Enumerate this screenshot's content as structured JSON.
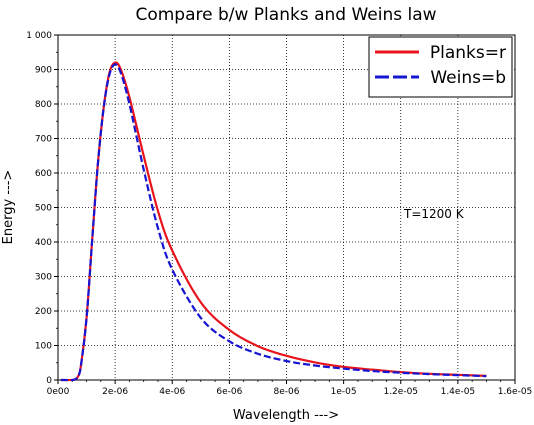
{
  "chart_data": {
    "type": "line",
    "title": "Compare b/w Planks and Weins law",
    "xlabel": "Wavelength --->",
    "ylabel": "Energy --->",
    "xlim": [
      0,
      1.6e-05
    ],
    "ylim": [
      0,
      1000
    ],
    "x_ticks": [
      0,
      2e-06,
      4e-06,
      6e-06,
      8e-06,
      1e-05,
      1.2e-05,
      1.4e-05,
      1.6e-05
    ],
    "x_tick_labels": [
      "0e00",
      "2e-06",
      "4e-06",
      "6e-06",
      "8e-06",
      "1e-05",
      "1.2e-05",
      "1.4e-05",
      "1.6e-05"
    ],
    "y_ticks": [
      0,
      100,
      200,
      300,
      400,
      500,
      600,
      700,
      800,
      900,
      1000
    ],
    "y_tick_labels": [
      "0",
      "100",
      "200",
      "300",
      "400",
      "500",
      "600",
      "700",
      "800",
      "900",
      "1 000"
    ],
    "grid": true,
    "legend_position": "top-right",
    "annotation": "T=1200 K",
    "series": [
      {
        "name": "Planks=r",
        "color": "#e8141c",
        "style": "solid",
        "x": [
          1e-07,
          5e-07,
          6e-07,
          7e-07,
          8e-07,
          1e-06,
          1.2e-06,
          1.4e-06,
          1.6e-06,
          1.8e-06,
          2e-06,
          2.2e-06,
          2.5e-06,
          3e-06,
          3.5e-06,
          4e-06,
          5e-06,
          6e-06,
          7e-06,
          8e-06,
          9e-06,
          1e-05,
          1.1e-05,
          1.2e-05,
          1.3e-05,
          1.4e-05,
          1.5e-05
        ],
        "y": [
          0,
          0,
          2,
          10,
          40,
          180,
          410,
          630,
          790,
          890,
          920,
          900,
          820,
          650,
          490,
          375,
          225,
          145,
          98,
          70,
          51,
          38,
          30,
          23,
          18,
          15,
          12
        ]
      },
      {
        "name": "Weins=b",
        "color": "#1515d2",
        "style": "dashed",
        "x": [
          1e-07,
          5e-07,
          6e-07,
          7e-07,
          8e-07,
          1e-06,
          1.2e-06,
          1.4e-06,
          1.6e-06,
          1.8e-06,
          2e-06,
          2.2e-06,
          2.5e-06,
          3e-06,
          3.5e-06,
          4e-06,
          5e-06,
          6e-06,
          7e-06,
          8e-06,
          9e-06,
          1e-05,
          1.1e-05,
          1.2e-05,
          1.3e-05,
          1.4e-05,
          1.5e-05
        ],
        "y": [
          0,
          0,
          2,
          10,
          40,
          180,
          410,
          630,
          790,
          885,
          915,
          890,
          800,
          610,
          440,
          320,
          180,
          112,
          76,
          55,
          42,
          33,
          26,
          21,
          17,
          14,
          11
        ]
      }
    ]
  }
}
